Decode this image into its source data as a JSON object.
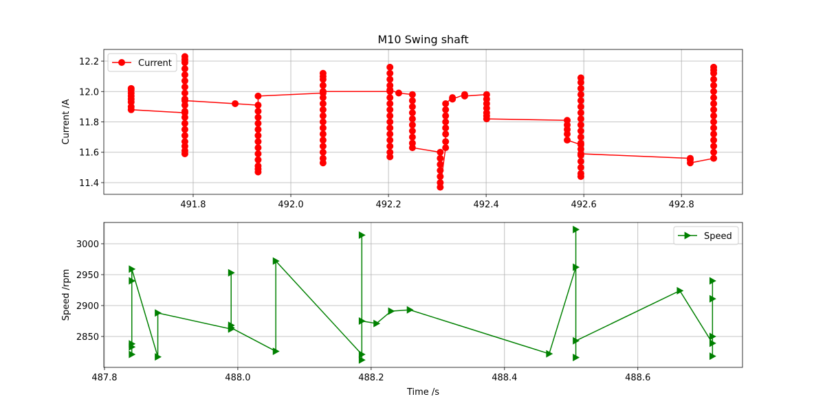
{
  "chart_data": [
    {
      "type": "line",
      "title": "M10 Swing shaft",
      "ylabel": "Current /A",
      "grid": true,
      "legend": "upper left",
      "xlim": [
        491.617,
        492.925
      ],
      "ylim": [
        11.323,
        12.277
      ],
      "xticks": [
        491.8,
        {
          "value": 492.0,
          "label": "492.0"
        },
        492.2,
        492.4,
        492.6,
        492.8
      ],
      "yticks": [
        11.4,
        11.6,
        11.8,
        {
          "value": 12.0,
          "label": "12.0"
        },
        12.2
      ],
      "x": [
        491.673,
        491.673,
        491.673,
        491.673,
        491.673,
        491.673,
        491.673,
        491.673,
        491.783,
        491.783,
        491.783,
        491.783,
        491.783,
        491.783,
        491.783,
        491.783,
        491.783,
        491.783,
        491.783,
        491.783,
        491.783,
        491.783,
        491.783,
        491.783,
        491.783,
        491.783,
        491.783,
        491.783,
        491.783,
        491.886,
        491.933,
        491.933,
        491.933,
        491.933,
        491.933,
        491.933,
        491.933,
        491.933,
        491.933,
        491.933,
        491.933,
        491.933,
        491.933,
        491.933,
        492.066,
        492.066,
        492.066,
        492.066,
        492.066,
        492.066,
        492.066,
        492.066,
        492.066,
        492.066,
        492.066,
        492.066,
        492.066,
        492.066,
        492.066,
        492.066,
        492.066,
        492.066,
        492.066,
        492.203,
        492.203,
        492.203,
        492.203,
        492.203,
        492.203,
        492.203,
        492.203,
        492.203,
        492.203,
        492.203,
        492.203,
        492.203,
        492.203,
        492.203,
        492.203,
        492.203,
        492.203,
        492.221,
        492.249,
        492.249,
        492.249,
        492.249,
        492.249,
        492.249,
        492.249,
        492.249,
        492.249,
        492.249,
        492.306,
        492.306,
        492.306,
        492.306,
        492.306,
        492.306,
        492.306,
        492.317,
        492.317,
        492.317,
        492.317,
        492.317,
        492.317,
        492.317,
        492.317,
        492.331,
        492.331,
        492.356,
        492.356,
        492.401,
        492.401,
        492.401,
        492.401,
        492.401,
        492.401,
        492.401,
        492.566,
        492.566,
        492.566,
        492.566,
        492.566,
        492.594,
        492.594,
        492.594,
        492.594,
        492.594,
        492.594,
        492.594,
        492.594,
        492.594,
        492.594,
        492.594,
        492.594,
        492.594,
        492.594,
        492.594,
        492.594,
        492.594,
        492.594,
        492.594,
        492.594,
        492.818,
        492.818,
        492.818,
        492.866,
        492.866,
        492.866,
        492.866,
        492.866,
        492.866,
        492.866,
        492.866,
        492.866,
        492.866,
        492.866,
        492.866,
        492.866,
        492.866,
        492.866,
        492.866,
        492.866
      ],
      "series": [
        {
          "name": "Current",
          "color": "#ff0000",
          "marker": "circle",
          "values": [
            12.02,
            12.01,
            11.99,
            11.97,
            11.95,
            11.93,
            11.9,
            11.88,
            11.86,
            11.59,
            11.61,
            11.64,
            11.67,
            11.71,
            11.75,
            11.79,
            11.83,
            11.87,
            11.91,
            11.95,
            11.99,
            12.03,
            12.07,
            12.11,
            12.15,
            12.19,
            12.21,
            12.23,
            11.94,
            11.92,
            11.91,
            11.87,
            11.83,
            11.79,
            11.75,
            11.71,
            11.67,
            11.63,
            11.59,
            11.55,
            11.51,
            11.49,
            11.47,
            11.97,
            11.99,
            11.53,
            11.56,
            11.6,
            11.64,
            11.68,
            11.72,
            11.76,
            11.8,
            11.84,
            11.88,
            11.92,
            11.96,
            12.0,
            12.04,
            12.08,
            12.1,
            12.12,
            12.0,
            12.0,
            11.57,
            11.6,
            11.64,
            11.68,
            11.72,
            11.76,
            11.8,
            11.84,
            11.88,
            11.92,
            11.96,
            12.01,
            12.04,
            12.08,
            12.12,
            12.16,
            12.01,
            11.99,
            11.98,
            11.94,
            11.9,
            11.86,
            11.82,
            11.78,
            11.74,
            11.7,
            11.66,
            11.63,
            11.6,
            11.56,
            11.52,
            11.48,
            11.44,
            11.4,
            11.37,
            11.63,
            11.67,
            11.72,
            11.76,
            11.8,
            11.84,
            11.88,
            11.92,
            11.96,
            11.95,
            11.98,
            11.97,
            11.98,
            11.95,
            11.92,
            11.89,
            11.86,
            11.84,
            11.82,
            11.81,
            11.78,
            11.75,
            11.72,
            11.68,
            11.65,
            12.09,
            12.06,
            12.02,
            11.98,
            11.94,
            11.9,
            11.86,
            11.82,
            11.78,
            11.74,
            11.7,
            11.66,
            11.62,
            11.58,
            11.54,
            11.5,
            11.46,
            11.44,
            11.59,
            11.56,
            11.55,
            11.53,
            11.56,
            11.6,
            11.64,
            11.68,
            11.72,
            11.76,
            11.8,
            11.84,
            11.88,
            11.92,
            11.96,
            12.0,
            12.04,
            12.08,
            12.12,
            12.14,
            12.16
          ]
        }
      ]
    },
    {
      "type": "line",
      "xlabel": "Time /s",
      "ylabel": "Speed /rpm",
      "grid": true,
      "legend": "upper right",
      "xlim": [
        487.799,
        488.757
      ],
      "ylim": [
        2800,
        3034.4
      ],
      "xticks": [
        487.8,
        {
          "value": 488.0,
          "label": "488.0"
        },
        488.2,
        488.4,
        488.6
      ],
      "yticks": [
        2850,
        2900,
        2950,
        3000
      ],
      "x": [
        487.841,
        487.841,
        487.841,
        487.841,
        487.841,
        487.88,
        487.88,
        487.99,
        487.99,
        487.99,
        487.99,
        488.057,
        488.057,
        488.186,
        488.186,
        488.186,
        488.186,
        488.208,
        488.23,
        488.258,
        488.467,
        488.507,
        488.507,
        488.507,
        488.507,
        488.663,
        488.712,
        488.712,
        488.712,
        488.712,
        488.712
      ],
      "series": [
        {
          "name": "Speed",
          "color": "#008000",
          "marker": "triangle-right",
          "values": [
            2821,
            2833,
            2838,
            2940,
            2959,
            2817,
            2888,
            2862,
            2868,
            2953,
            2864,
            2826,
            2972,
            2821,
            2812,
            3014,
            2875,
            2871,
            2891,
            2893,
            2822,
            2962,
            3023,
            2816,
            2843,
            2924,
            2839,
            2850,
            2940,
            2911,
            2818
          ]
        }
      ]
    }
  ]
}
